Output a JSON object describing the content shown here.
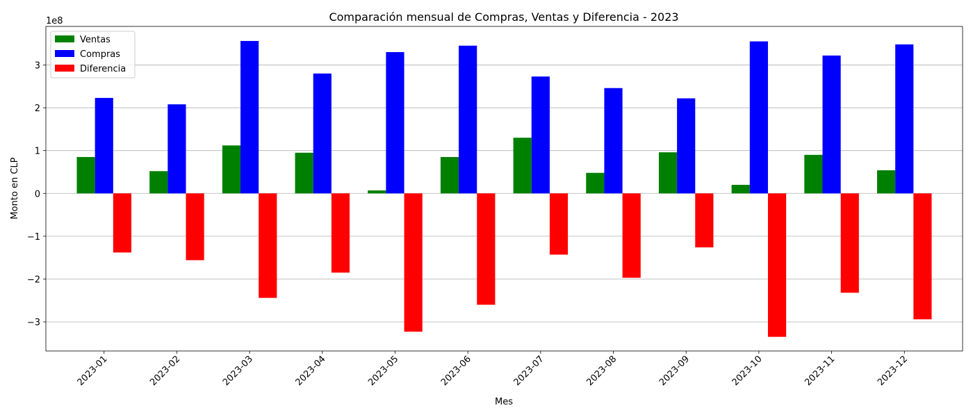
{
  "chart_data": {
    "type": "bar",
    "title": "Comparación mensual de Compras, Ventas y Diferencia - 2023",
    "xlabel": "Mes",
    "ylabel": "Monto en CLP",
    "y_offset_text": "1e8",
    "categories": [
      "2023-01",
      "2023-02",
      "2023-03",
      "2023-04",
      "2023-05",
      "2023-06",
      "2023-07",
      "2023-08",
      "2023-09",
      "2023-10",
      "2023-11",
      "2023-12"
    ],
    "series": [
      {
        "name": "Ventas",
        "color": "#008000",
        "values": [
          85000000,
          52000000,
          112000000,
          95000000,
          7000000,
          85000000,
          130000000,
          48000000,
          96000000,
          20000000,
          90000000,
          54000000
        ]
      },
      {
        "name": "Compras",
        "color": "#0000ff",
        "values": [
          223000000,
          208000000,
          356000000,
          280000000,
          330000000,
          345000000,
          273000000,
          246000000,
          222000000,
          355000000,
          322000000,
          348000000
        ]
      },
      {
        "name": "Diferencia",
        "color": "#ff0000",
        "values": [
          -138000000,
          -156000000,
          -244000000,
          -185000000,
          -323000000,
          -260000000,
          -143000000,
          -197000000,
          -126000000,
          -335000000,
          -232000000,
          -294000000
        ]
      }
    ],
    "y_ticks": [
      {
        "value": -300000000,
        "label": "−3"
      },
      {
        "value": -200000000,
        "label": "−2"
      },
      {
        "value": -100000000,
        "label": "−1"
      },
      {
        "value": 0,
        "label": "0"
      },
      {
        "value": 100000000,
        "label": "1"
      },
      {
        "value": 200000000,
        "label": "2"
      },
      {
        "value": 300000000,
        "label": "3"
      }
    ],
    "ylim": [
      -368000000,
      390000000
    ],
    "grid": "y",
    "legend_position": "top-left"
  }
}
